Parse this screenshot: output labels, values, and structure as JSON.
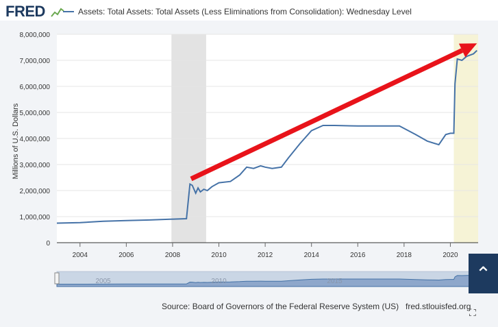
{
  "header": {
    "logo_text": "FRED",
    "logo_icon": "chart-line-icon",
    "legend_label": "Assets: Total Assets: Total Assets (Less Eliminations from Consolidation): Wednesday Level"
  },
  "footer": {
    "source": "Source: Board of Governors of the Federal Reserve System (US)",
    "site": "fred.stlouisfed.org",
    "fullscreen_icon": "fullscreen-icon",
    "scroll_top_icon": "chevron-up-icon"
  },
  "colors": {
    "line": "#4572a7",
    "recession": "#e3e3e3",
    "highlight": "#f6f3d6",
    "arrow": "#e8131a"
  },
  "chart_data": {
    "type": "line",
    "title": "",
    "xlabel": "",
    "ylabel": "Millions of U.S. Dollars",
    "xlim": [
      2003.0,
      2021.2
    ],
    "ylim": [
      0,
      8000000
    ],
    "y_ticks": [
      0,
      1000000,
      2000000,
      3000000,
      4000000,
      5000000,
      6000000,
      7000000,
      8000000
    ],
    "y_tick_labels": [
      "0",
      "1,000,000",
      "2,000,000",
      "3,000,000",
      "4,000,000",
      "5,000,000",
      "6,000,000",
      "7,000,000",
      "8,000,000"
    ],
    "x_ticks": [
      2004,
      2006,
      2008,
      2010,
      2012,
      2014,
      2016,
      2018,
      2020
    ],
    "x_tick_labels": [
      "2004",
      "2006",
      "2008",
      "2010",
      "2012",
      "2014",
      "2016",
      "2018",
      "2020"
    ],
    "grid": true,
    "shaded_periods": [
      {
        "start": 2007.95,
        "end": 2009.45,
        "kind": "recession"
      },
      {
        "start": 2020.15,
        "end": 2021.2,
        "kind": "highlight"
      }
    ],
    "series": [
      {
        "x": [
          2003.0,
          2004.0,
          2005.0,
          2006.0,
          2007.0,
          2007.9,
          2008.6,
          2008.75,
          2008.85,
          2009.0,
          2009.1,
          2009.2,
          2009.35,
          2009.5,
          2009.7,
          2010.0,
          2010.5,
          2010.9,
          2011.2,
          2011.5,
          2011.8,
          2012.0,
          2012.3,
          2012.7,
          2013.0,
          2013.5,
          2014.0,
          2014.5,
          2015.0,
          2016.0,
          2017.0,
          2017.8,
          2018.5,
          2019.0,
          2019.5,
          2019.8,
          2020.0,
          2020.15,
          2020.2,
          2020.3,
          2020.5,
          2020.7,
          2021.0,
          2021.15
        ],
        "values": [
          750000,
          770000,
          820000,
          850000,
          870000,
          900000,
          920000,
          2250000,
          2200000,
          1900000,
          2100000,
          1950000,
          2050000,
          2000000,
          2150000,
          2300000,
          2350000,
          2600000,
          2900000,
          2850000,
          2950000,
          2900000,
          2850000,
          2900000,
          3250000,
          3800000,
          4300000,
          4500000,
          4500000,
          4480000,
          4480000,
          4480000,
          4150000,
          3900000,
          3760000,
          4150000,
          4200000,
          4200000,
          6100000,
          7050000,
          7000000,
          7150000,
          7250000,
          7380000
        ]
      }
    ],
    "annotations": [
      {
        "type": "arrow",
        "from": [
          2008.8,
          2450000
        ],
        "to": [
          2021.15,
          7650000
        ]
      }
    ]
  },
  "navigator": {
    "x_tick_labels": [
      "2005",
      "2010",
      "2015"
    ]
  }
}
